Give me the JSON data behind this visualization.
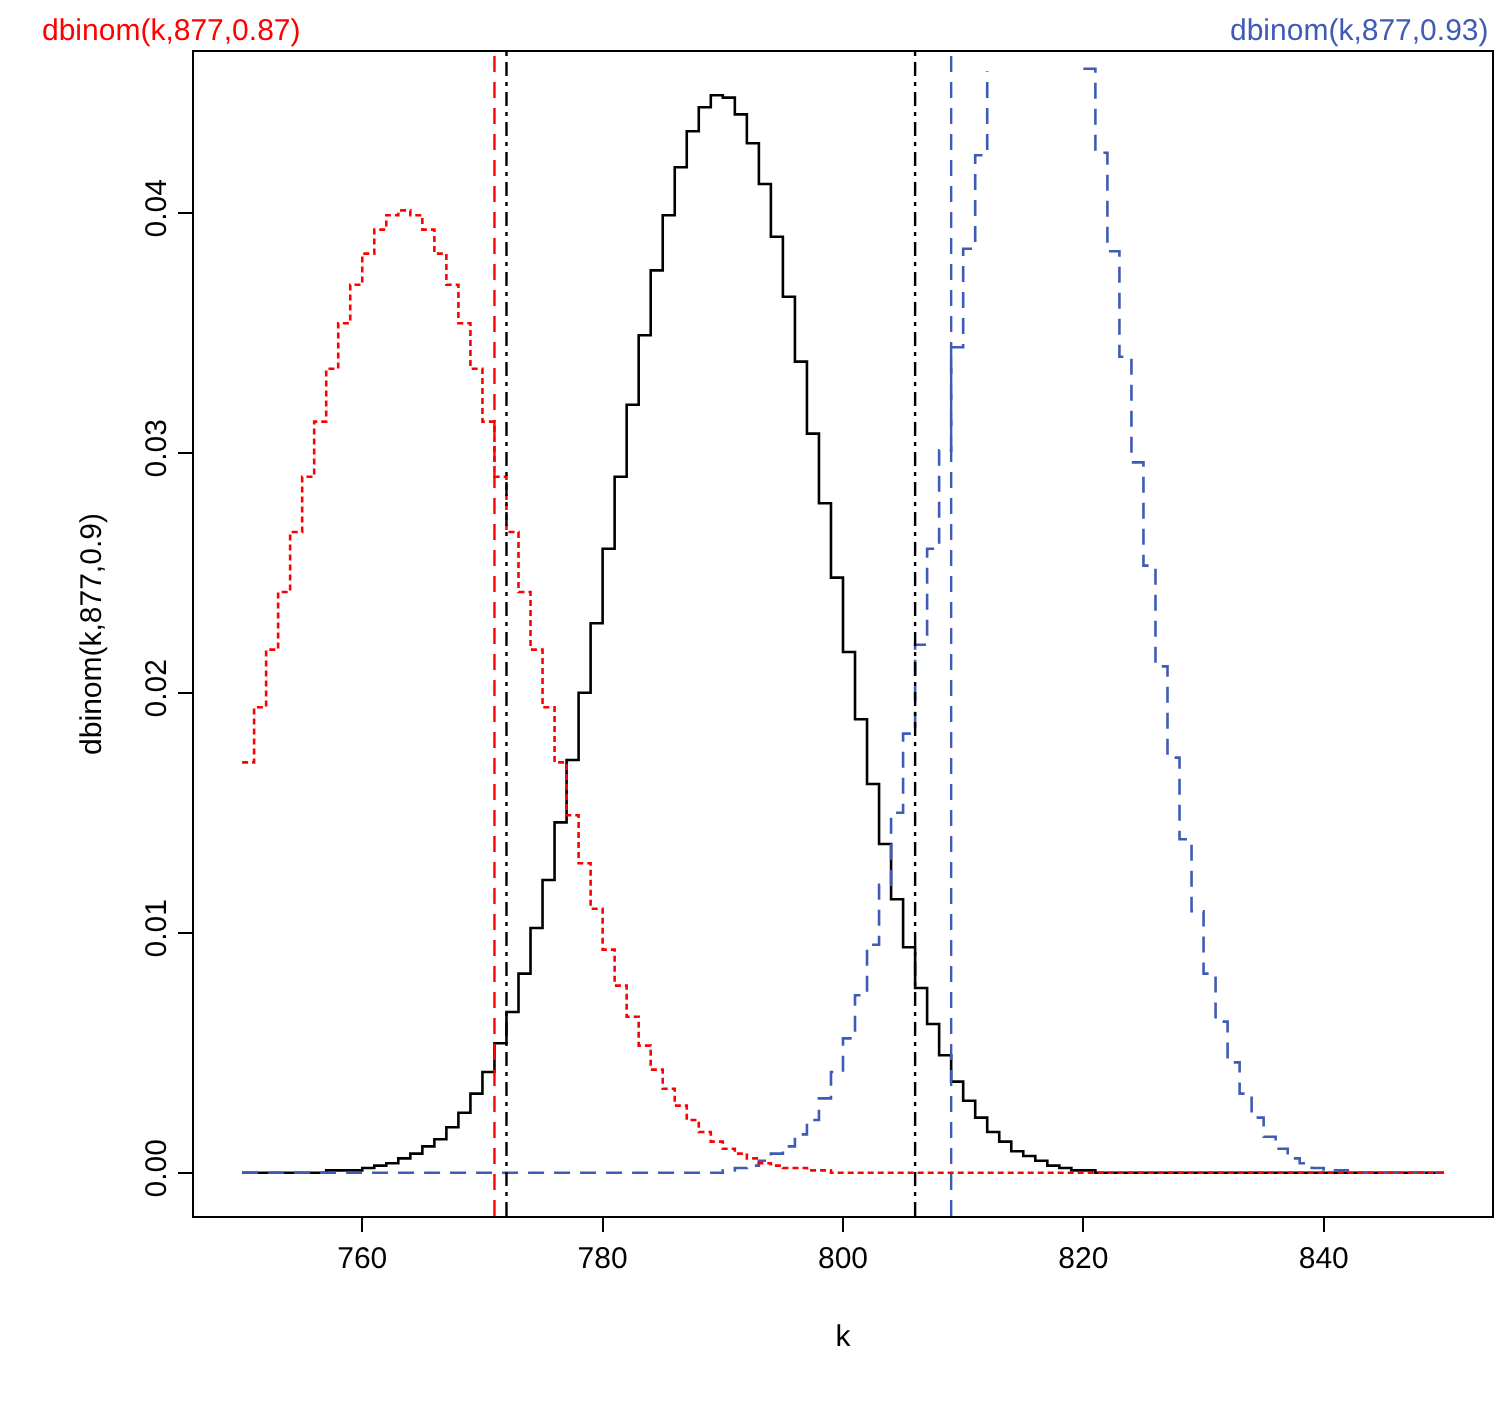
{
  "chart_data": {
    "type": "step",
    "xlabel": "k",
    "ylabel": "dbinom(k,877,0.9)",
    "x": [
      750,
      751,
      752,
      753,
      754,
      755,
      756,
      757,
      758,
      759,
      760,
      761,
      762,
      763,
      764,
      765,
      766,
      767,
      768,
      769,
      770,
      771,
      772,
      773,
      774,
      775,
      776,
      777,
      778,
      779,
      780,
      781,
      782,
      783,
      784,
      785,
      786,
      787,
      788,
      789,
      790,
      791,
      792,
      793,
      794,
      795,
      796,
      797,
      798,
      799,
      800,
      801,
      802,
      803,
      804,
      805,
      806,
      807,
      808,
      809,
      810,
      811,
      812,
      813,
      814,
      815,
      816,
      817,
      818,
      819,
      820,
      821,
      822,
      823,
      824,
      825,
      826,
      827,
      828,
      829,
      830,
      831,
      832,
      833,
      834,
      835,
      836,
      837,
      838,
      839,
      840,
      841,
      842,
      843,
      844,
      845,
      846,
      847,
      848,
      849,
      850
    ],
    "series": [
      {
        "color": "#000000",
        "line_style": "solid",
        "values": [
          0,
          0,
          0,
          0,
          0,
          0,
          0,
          0.0001,
          0.0001,
          0.0001,
          0.0002,
          0.0003,
          0.0004,
          0.0006,
          0.0008,
          0.0011,
          0.0014,
          0.0019,
          0.0025,
          0.0033,
          0.0042,
          0.0054,
          0.0067,
          0.0083,
          0.0102,
          0.0122,
          0.0146,
          0.0172,
          0.02,
          0.0229,
          0.026,
          0.029,
          0.032,
          0.0349,
          0.0376,
          0.0399,
          0.0419,
          0.0434,
          0.0444,
          0.0449,
          0.0448,
          0.0441,
          0.0429,
          0.0412,
          0.039,
          0.0365,
          0.0338,
          0.0308,
          0.0279,
          0.0248,
          0.0217,
          0.0189,
          0.0162,
          0.0137,
          0.0114,
          0.0094,
          0.0077,
          0.0062,
          0.0049,
          0.0038,
          0.003,
          0.0023,
          0.0017,
          0.0013,
          0.0009,
          0.0007,
          0.0005,
          0.0003,
          0.0002,
          0.0001,
          0.0001,
          0,
          0,
          0,
          0,
          0,
          0,
          0,
          0,
          0,
          0,
          0,
          0,
          0,
          0,
          0,
          0,
          0,
          0,
          0,
          0,
          0,
          0,
          0,
          0,
          0,
          0,
          0,
          0,
          0,
          0
        ]
      },
      {
        "name": "dbinom(k,877,0.87)",
        "color": "#ff0000",
        "line_style": "dotted",
        "values": [
          0.0171,
          0.0194,
          0.0218,
          0.0242,
          0.0267,
          0.029,
          0.0313,
          0.0335,
          0.0354,
          0.037,
          0.0383,
          0.0393,
          0.0399,
          0.0401,
          0.0399,
          0.0393,
          0.0383,
          0.037,
          0.0354,
          0.0335,
          0.0313,
          0.029,
          0.0267,
          0.0242,
          0.0218,
          0.0194,
          0.0171,
          0.0149,
          0.0129,
          0.011,
          0.0093,
          0.0078,
          0.0065,
          0.0053,
          0.0043,
          0.0035,
          0.0028,
          0.0022,
          0.0017,
          0.0013,
          0.001,
          0.0008,
          0.0006,
          0.0004,
          0.0003,
          0.0002,
          0.0002,
          0.0001,
          0.0001,
          0,
          0,
          0,
          0,
          0,
          0,
          0,
          0,
          0,
          0,
          0,
          0,
          0,
          0,
          0,
          0,
          0,
          0,
          0,
          0,
          0,
          0,
          0,
          0,
          0,
          0,
          0,
          0,
          0,
          0,
          0,
          0,
          0,
          0,
          0,
          0,
          0,
          0,
          0,
          0,
          0,
          0,
          0,
          0,
          0,
          0,
          0,
          0,
          0,
          0,
          0,
          0
        ]
      },
      {
        "name": "dbinom(k,877,0.93)",
        "color": "#3f5bb5",
        "line_style": "dashed",
        "values": [
          0,
          0,
          0,
          0,
          0,
          0,
          0,
          0,
          0,
          0,
          0,
          0,
          0,
          0,
          0,
          0,
          0,
          0,
          0,
          0,
          0,
          0,
          0,
          0,
          0,
          0,
          0,
          0,
          0,
          0,
          0,
          0,
          0,
          0,
          0,
          0,
          0,
          0,
          0,
          0,
          0.0001,
          0.0002,
          0.0003,
          0.0005,
          0.0008,
          0.0011,
          0.0016,
          0.0022,
          0.0031,
          0.0042,
          0.0056,
          0.0074,
          0.0095,
          0.012,
          0.015,
          0.0183,
          0.022,
          0.026,
          0.0301,
          0.0344,
          0.0385,
          0.0424,
          0.0459,
          null,
          null,
          null,
          null,
          null,
          null,
          null,
          0.046,
          0.0425,
          0.0384,
          0.034,
          0.0296,
          0.0253,
          0.0211,
          0.0173,
          0.0139,
          0.0109,
          0.0083,
          0.0063,
          0.0046,
          0.0033,
          0.0023,
          0.0015,
          0.001,
          0.0006,
          0.0004,
          0.0002,
          0.0001,
          0.0001,
          0,
          0,
          0,
          0,
          0,
          0,
          0,
          0,
          0
        ]
      }
    ],
    "ref_lines": [
      {
        "axis": "x",
        "value": 771,
        "color": "#ff0000",
        "line_style": "dashed"
      },
      {
        "axis": "x",
        "value": 772,
        "color": "#000000",
        "line_style": "dashdot"
      },
      {
        "axis": "x",
        "value": 806,
        "color": "#000000",
        "line_style": "dashdot"
      },
      {
        "axis": "x",
        "value": 809,
        "color": "#3f5bb5",
        "line_style": "dashed"
      }
    ],
    "xlim": [
      746,
      854
    ],
    "xticks": [
      760,
      780,
      800,
      820,
      840
    ],
    "ylim": [
      -0.0018,
      0.0467
    ],
    "yticks": [
      {
        "value": 0,
        "label": "0.00"
      },
      {
        "value": 0.01,
        "label": "0.01"
      },
      {
        "value": 0.02,
        "label": "0.02"
      },
      {
        "value": 0.03,
        "label": "0.03"
      },
      {
        "value": 0.04,
        "label": "0.04"
      }
    ],
    "grid": false,
    "legend": false
  }
}
